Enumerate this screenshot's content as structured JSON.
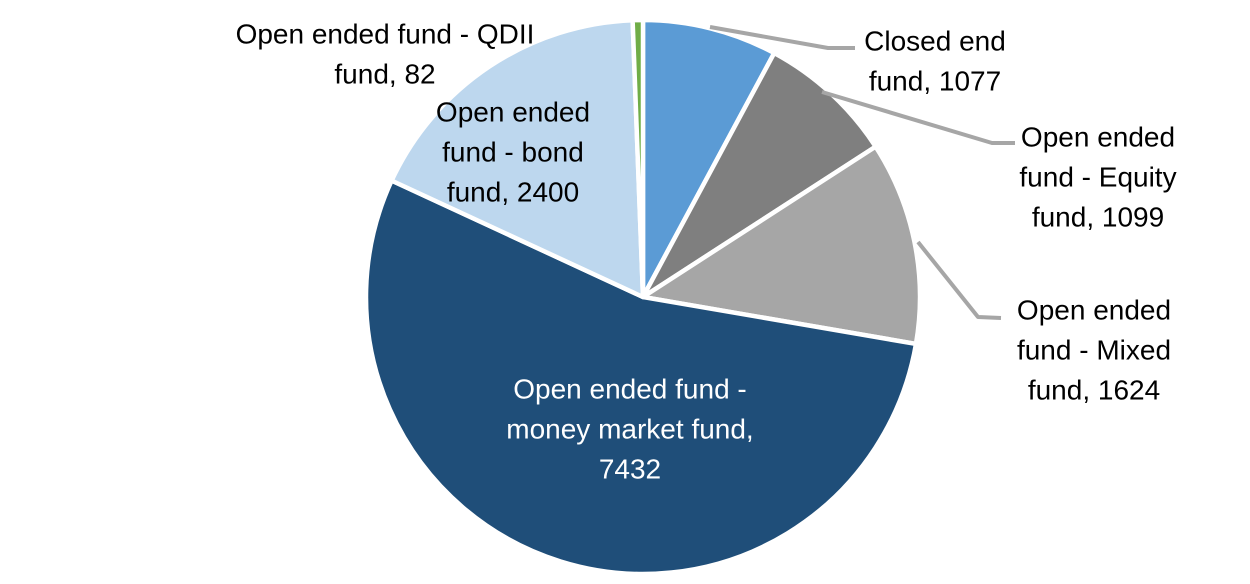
{
  "figure": {
    "background_color": "#FFFFFF",
    "title": ""
  },
  "chart_data": {
    "type": "pie",
    "title": "",
    "legend_position": "none",
    "data_label_format": "category, value",
    "start_angle_deg": 0,
    "direction": "clockwise",
    "slice_border_color": "#FFFFFF",
    "leader_line_color": "#A6A6A6",
    "series": [
      {
        "label": "Closed end fund",
        "value": 1077,
        "color": "#5B9BD5",
        "label_color": "#000000",
        "leader_line": true
      },
      {
        "label": "Open ended fund - Equity fund",
        "value": 1099,
        "color": "#7F7F7F",
        "label_color": "#000000",
        "leader_line": true
      },
      {
        "label": "Open ended fund - Mixed fund",
        "value": 1624,
        "color": "#A6A6A6",
        "label_color": "#000000",
        "leader_line": true
      },
      {
        "label": "Open ended fund - money market fund",
        "value": 7432,
        "color": "#1F4E79",
        "label_color": "#FFFFFF",
        "leader_line": false
      },
      {
        "label": "Open ended fund - bond fund",
        "value": 2400,
        "color": "#BDD7EE",
        "label_color": "#000000",
        "leader_line": false
      },
      {
        "label": "Open ended fund - QDII fund",
        "value": 82,
        "color": "#70AD47",
        "label_color": "#000000",
        "leader_line": false
      }
    ]
  }
}
